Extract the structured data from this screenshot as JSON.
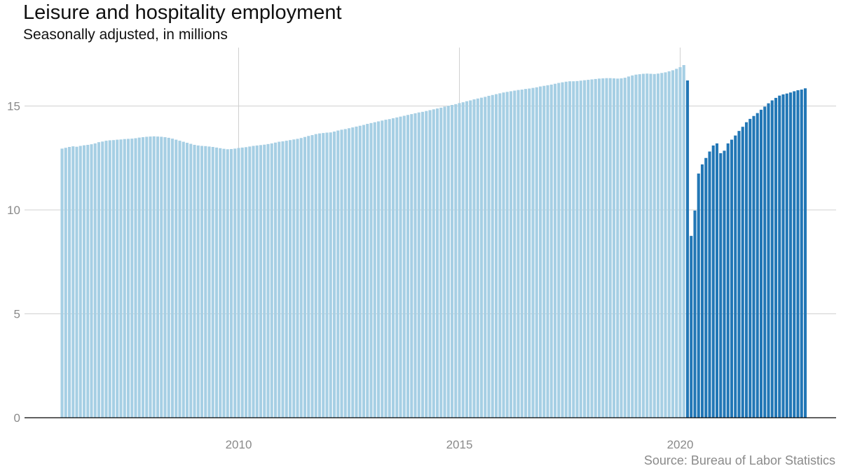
{
  "chart_data": {
    "type": "bar",
    "title": "Leisure and hospitality employment",
    "subtitle": "Seasonally adjusted, in millions",
    "source": "Source: Bureau of Labor Statistics",
    "xlabel": "",
    "ylabel": "",
    "x_start": "2006-01",
    "x_ticks": [
      2010,
      2015,
      2020
    ],
    "y_ticks": [
      0,
      5,
      10,
      15
    ],
    "ylim": [
      0,
      17.8
    ],
    "grid": true,
    "colors": {
      "pre_pandemic": "#a6cfe4",
      "since_pandemic": "#2277b6",
      "grid": "#d0d0d0",
      "axis": "#000000"
    },
    "series": [
      {
        "values": [
          12.95,
          12.99,
          13.03,
          13.06,
          13.04,
          13.08,
          13.11,
          13.13,
          13.16,
          13.2,
          13.26,
          13.29,
          13.33,
          13.35,
          13.36,
          13.38,
          13.39,
          13.41,
          13.42,
          13.43,
          13.45,
          13.48,
          13.5,
          13.52,
          13.53,
          13.54,
          13.53,
          13.52,
          13.5,
          13.47,
          13.43,
          13.38,
          13.33,
          13.28,
          13.23,
          13.18,
          13.13,
          13.1,
          13.08,
          13.07,
          13.05,
          13.03,
          13.0,
          12.97,
          12.94,
          12.92,
          12.93,
          12.95,
          12.98,
          13.0,
          13.02,
          13.05,
          13.08,
          13.1,
          13.12,
          13.14,
          13.17,
          13.2,
          13.24,
          13.28,
          13.3,
          13.33,
          13.36,
          13.39,
          13.42,
          13.46,
          13.51,
          13.56,
          13.6,
          13.65,
          13.68,
          13.7,
          13.72,
          13.73,
          13.77,
          13.82,
          13.86,
          13.89,
          13.93,
          13.97,
          14.01,
          14.05,
          14.09,
          14.14,
          14.18,
          14.22,
          14.26,
          14.3,
          14.34,
          14.37,
          14.41,
          14.45,
          14.49,
          14.53,
          14.57,
          14.61,
          14.65,
          14.69,
          14.72,
          14.76,
          14.8,
          14.84,
          14.88,
          14.92,
          14.97,
          15.01,
          15.05,
          15.09,
          15.14,
          15.18,
          15.23,
          15.27,
          15.32,
          15.36,
          15.4,
          15.44,
          15.49,
          15.53,
          15.57,
          15.61,
          15.65,
          15.68,
          15.71,
          15.74,
          15.77,
          15.79,
          15.82,
          15.84,
          15.87,
          15.9,
          15.94,
          15.97,
          16.0,
          16.03,
          16.07,
          16.11,
          16.14,
          16.17,
          16.19,
          16.19,
          16.2,
          16.22,
          16.24,
          16.26,
          16.28,
          16.3,
          16.32,
          16.33,
          16.34,
          16.34,
          16.33,
          16.32,
          16.33,
          16.36,
          16.42,
          16.47,
          16.51,
          16.53,
          16.55,
          16.56,
          16.55,
          16.54,
          16.56,
          16.59,
          16.62,
          16.67,
          16.72,
          16.79,
          16.87,
          16.97
        ]
      },
      {
        "values": [
          16.23,
          8.75,
          9.97,
          11.75,
          12.19,
          12.5,
          12.81,
          13.1,
          13.2,
          12.73,
          12.85,
          13.2,
          13.38,
          13.58,
          13.8,
          14.0,
          14.22,
          14.38,
          14.52,
          14.66,
          14.82,
          14.97,
          15.13,
          15.27,
          15.39,
          15.5,
          15.56,
          15.6,
          15.65,
          15.71,
          15.76,
          15.79,
          15.85
        ]
      }
    ]
  }
}
